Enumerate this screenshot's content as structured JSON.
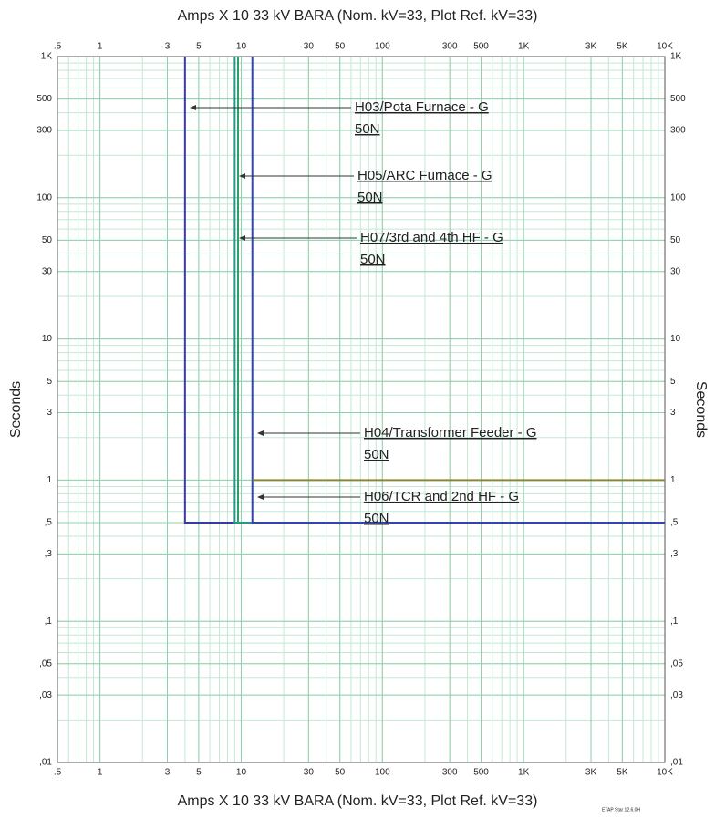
{
  "chart_data": {
    "type": "line",
    "xlabel": "Amps  X  10   33 kV BARA (Nom. kV=33, Plot Ref. kV=33)",
    "ylabel": "Seconds",
    "watermark": "ETAP Star 12.6.0H",
    "xlog": true,
    "ylog": true,
    "grid": true,
    "xlim": [
      0.5,
      10000
    ],
    "ylim": [
      0.01,
      1000
    ],
    "xticks": [
      {
        "value": 0.5,
        "label": ".5"
      },
      1,
      3,
      5,
      10,
      30,
      50,
      100,
      300,
      500,
      {
        "value": 1000,
        "label": "1K"
      },
      {
        "value": 3000,
        "label": "3K"
      },
      {
        "value": 5000,
        "label": "5K"
      },
      {
        "value": 10000,
        "label": "10K"
      }
    ],
    "yticks": [
      {
        "value": 1000,
        "label": "1K"
      },
      500,
      300,
      100,
      50,
      30,
      10,
      5,
      3,
      1,
      {
        "value": 0.5,
        "label": ",5"
      },
      {
        "value": 0.3,
        "label": ",3"
      },
      {
        "value": 0.1,
        "label": ",1"
      },
      {
        "value": 0.05,
        "label": ",05"
      },
      {
        "value": 0.03,
        "label": ",03"
      },
      {
        "value": 0.01,
        "label": ",01"
      }
    ],
    "series": [
      {
        "color": "#3a3aa6",
        "x": [
          4,
          4,
          10000
        ],
        "values": [
          1000,
          0.5,
          0.5
        ]
      },
      {
        "color": "#1f9a8a",
        "x": [
          9,
          9,
          10000
        ],
        "values": [
          1000,
          0.5,
          0.5
        ]
      },
      {
        "color": "#2fa066",
        "x": [
          9.5,
          9.5
        ],
        "values": [
          1000,
          0.5
        ]
      },
      {
        "color": "#3344b0",
        "x": [
          12,
          12,
          10000
        ],
        "values": [
          1000,
          0.5,
          0.5
        ]
      },
      {
        "color": "#8a8a30",
        "x": [
          12,
          10000
        ],
        "values": [
          1,
          1
        ]
      }
    ],
    "annotations": [
      {
        "line1": "H03/Pota Furnace - G",
        "line2": "50N"
      },
      {
        "line1": "H05/ARC Furnace - G",
        "line2": "50N"
      },
      {
        "line1": "H07/3rd and 4th HF - G",
        "line2": "50N"
      },
      {
        "line1": "H04/Transformer Feeder - G",
        "line2": "50N"
      },
      {
        "line1": "H06/TCR and 2nd HF - G",
        "line2": "50N"
      }
    ]
  }
}
